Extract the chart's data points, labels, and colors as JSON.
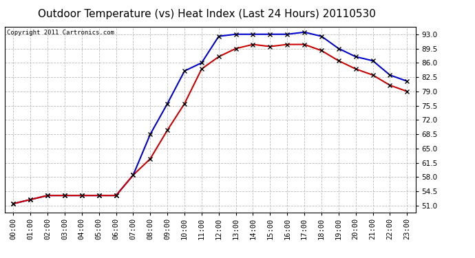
{
  "title": "Outdoor Temperature (vs) Heat Index (Last 24 Hours) 20110530",
  "copyright": "Copyright 2011 Cartronics.com",
  "x_labels": [
    "00:00",
    "01:00",
    "02:00",
    "03:00",
    "04:00",
    "05:00",
    "06:00",
    "07:00",
    "08:00",
    "09:00",
    "10:00",
    "11:00",
    "12:00",
    "13:00",
    "14:00",
    "15:00",
    "16:00",
    "17:00",
    "18:00",
    "19:00",
    "20:00",
    "21:00",
    "22:00",
    "23:00"
  ],
  "temp_values": [
    51.5,
    52.5,
    53.5,
    53.5,
    53.5,
    53.5,
    53.5,
    58.5,
    62.5,
    69.5,
    76.0,
    84.5,
    87.5,
    89.5,
    90.5,
    90.0,
    90.5,
    90.5,
    89.0,
    86.5,
    84.5,
    83.0,
    80.5,
    79.0
  ],
  "heat_values": [
    51.5,
    52.5,
    53.5,
    53.5,
    53.5,
    53.5,
    53.5,
    58.5,
    68.5,
    76.0,
    84.0,
    86.0,
    92.5,
    93.0,
    93.0,
    93.0,
    93.0,
    93.5,
    92.5,
    89.5,
    87.5,
    86.5,
    83.0,
    81.5
  ],
  "temp_color": "#cc0000",
  "heat_color": "#0000cc",
  "marker": "x",
  "marker_color": "#000000",
  "ylim_min": 49.25,
  "ylim_max": 94.75,
  "yticks": [
    51.0,
    54.5,
    58.0,
    61.5,
    65.0,
    68.5,
    72.0,
    75.5,
    79.0,
    82.5,
    86.0,
    89.5,
    93.0
  ],
  "bg_color": "#ffffff",
  "plot_bg_color": "#ffffff",
  "grid_color": "#bbbbbb",
  "title_fontsize": 11,
  "tick_fontsize": 7.5,
  "copyright_fontsize": 6.5
}
